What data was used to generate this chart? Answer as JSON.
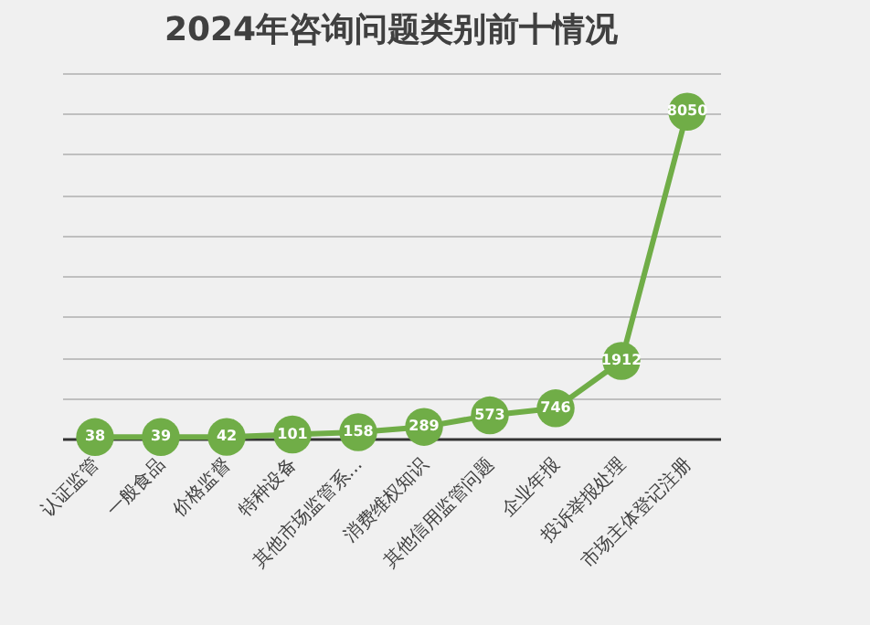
{
  "chart_data": {
    "type": "line",
    "title": "2024年咨询问题类别前十情况",
    "categories": [
      "认证监管",
      "一般食品",
      "价格监督",
      "特种设备",
      "其他市场监管系...",
      "消费维权知识",
      "其他信用监管问题",
      "企业年报",
      "投诉举报处理",
      "市场主体登记注册"
    ],
    "series": [
      {
        "color": "#70ad47",
        "values": [
          38,
          39,
          42,
          101,
          158,
          289,
          573,
          746,
          1912,
          8050
        ]
      }
    ],
    "data_labels": true,
    "marker": "circle",
    "grid": "y"
  }
}
